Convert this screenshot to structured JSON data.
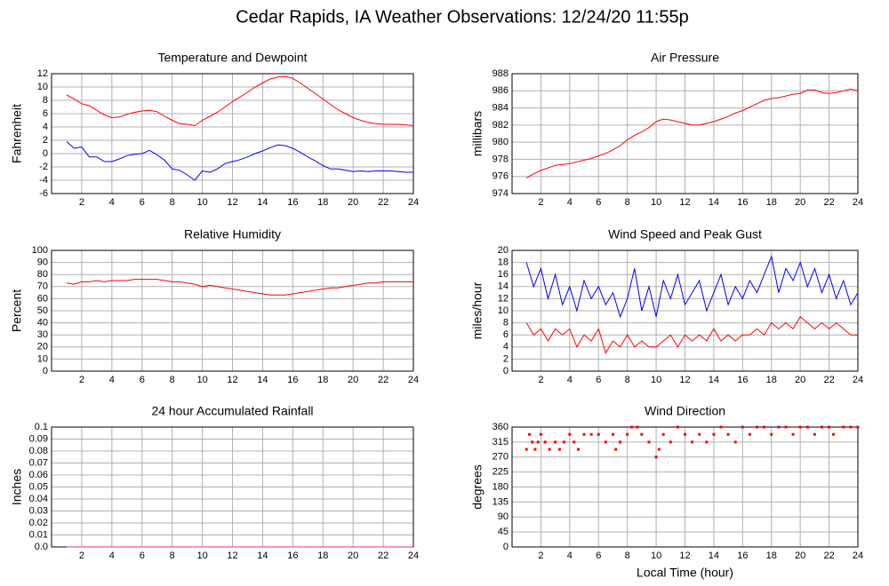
{
  "title": "Cedar Rapids, IA Weather Observations: 12/24/20 11:55p",
  "chart_data": [
    {
      "type": "line",
      "title": "Temperature and Dewpoint",
      "ylabel": "Fahrenheit",
      "x": [
        1,
        1.5,
        2,
        2.5,
        3,
        3.5,
        4,
        4.5,
        5,
        5.5,
        6,
        6.5,
        7,
        7.5,
        8,
        8.5,
        9,
        9.5,
        10,
        10.5,
        11,
        11.5,
        12,
        12.5,
        13,
        13.5,
        14,
        14.5,
        15,
        15.5,
        16,
        16.5,
        17,
        17.5,
        18,
        18.5,
        19,
        19.5,
        20,
        20.5,
        21,
        21.5,
        22,
        22.5,
        23,
        23.5,
        24
      ],
      "series": [
        {
          "color": "#ff0000",
          "values": [
            8.8,
            8.2,
            7.5,
            7.2,
            6.5,
            5.8,
            5.4,
            5.5,
            5.9,
            6.2,
            6.4,
            6.5,
            6.3,
            5.6,
            5.0,
            4.5,
            4.4,
            4.2,
            5.0,
            5.6,
            6.2,
            7.0,
            7.8,
            8.5,
            9.2,
            10.0,
            10.6,
            11.2,
            11.5,
            11.6,
            11.3,
            10.6,
            9.8,
            9.0,
            8.2,
            7.4,
            6.6,
            6.0,
            5.4,
            5.0,
            4.7,
            4.5,
            4.4,
            4.4,
            4.4,
            4.3,
            4.2
          ]
        },
        {
          "color": "#0000ff",
          "values": [
            1.8,
            0.8,
            1.0,
            -0.5,
            -0.5,
            -1.2,
            -1.2,
            -0.8,
            -0.3,
            -0.1,
            0.0,
            0.5,
            -0.2,
            -1.0,
            -2.3,
            -2.5,
            -3.2,
            -4.0,
            -2.6,
            -2.8,
            -2.3,
            -1.5,
            -1.2,
            -0.9,
            -0.5,
            0.0,
            0.4,
            0.9,
            1.3,
            1.2,
            0.8,
            0.2,
            -0.5,
            -1.1,
            -1.8,
            -2.3,
            -2.3,
            -2.5,
            -2.7,
            -2.6,
            -2.7,
            -2.6,
            -2.6,
            -2.6,
            -2.7,
            -2.8,
            -2.8
          ]
        }
      ],
      "xlim": [
        0,
        24
      ],
      "xticks": [
        2,
        4,
        6,
        8,
        10,
        12,
        14,
        16,
        18,
        20,
        22,
        24
      ],
      "ylim": [
        -6,
        12
      ],
      "yticks": [
        -6,
        -4,
        -2,
        0,
        2,
        4,
        6,
        8,
        10,
        12
      ],
      "grid": true
    },
    {
      "type": "line",
      "title": "Air Pressure",
      "ylabel": "millibars",
      "x": [
        1,
        1.5,
        2,
        2.5,
        3,
        3.5,
        4,
        4.5,
        5,
        5.5,
        6,
        6.5,
        7,
        7.5,
        8,
        8.5,
        9,
        9.5,
        10,
        10.5,
        11,
        11.5,
        12,
        12.5,
        13,
        13.5,
        14,
        14.5,
        15,
        15.5,
        16,
        16.5,
        17,
        17.5,
        18,
        18.5,
        19,
        19.5,
        20,
        20.5,
        21,
        21.5,
        22,
        22.5,
        23,
        23.5,
        24
      ],
      "series": [
        {
          "color": "#ff0000",
          "values": [
            975.8,
            976.3,
            976.7,
            977.0,
            977.3,
            977.4,
            977.5,
            977.7,
            977.9,
            978.1,
            978.4,
            978.7,
            979.1,
            979.6,
            980.3,
            980.8,
            981.2,
            981.7,
            982.4,
            982.7,
            982.6,
            982.4,
            982.2,
            982.0,
            982.0,
            982.2,
            982.4,
            982.7,
            983.0,
            983.4,
            983.7,
            984.1,
            984.5,
            984.9,
            985.1,
            985.2,
            985.4,
            985.6,
            985.7,
            986.1,
            986.1,
            985.8,
            985.7,
            985.8,
            986.0,
            986.2,
            986.0
          ]
        }
      ],
      "xlim": [
        0,
        24
      ],
      "xticks": [
        2,
        4,
        6,
        8,
        10,
        12,
        14,
        16,
        18,
        20,
        22,
        24
      ],
      "ylim": [
        974,
        988
      ],
      "yticks": [
        974,
        976,
        978,
        980,
        982,
        984,
        986,
        988
      ],
      "grid": true
    },
    {
      "type": "line",
      "title": "Relative Humidity",
      "ylabel": "Percent",
      "x": [
        1,
        1.5,
        2,
        2.5,
        3,
        3.5,
        4,
        4.5,
        5,
        5.5,
        6,
        6.5,
        7,
        7.5,
        8,
        8.5,
        9,
        9.5,
        10,
        10.5,
        11,
        11.5,
        12,
        12.5,
        13,
        13.5,
        14,
        14.5,
        15,
        15.5,
        16,
        16.5,
        17,
        17.5,
        18,
        18.5,
        19,
        19.5,
        20,
        20.5,
        21,
        21.5,
        22,
        22.5,
        23,
        23.5,
        24
      ],
      "series": [
        {
          "color": "#ff0000",
          "values": [
            73,
            72,
            74,
            74,
            75,
            74,
            75,
            75,
            75,
            76,
            76,
            76,
            76,
            75,
            74,
            74,
            73,
            72,
            70,
            71,
            70,
            69,
            68,
            67,
            66,
            65,
            64,
            63,
            63,
            63,
            64,
            65,
            66,
            67,
            68,
            69,
            69,
            70,
            71,
            72,
            73,
            73,
            74,
            74,
            74,
            74,
            74
          ]
        }
      ],
      "xlim": [
        0,
        24
      ],
      "xticks": [
        2,
        4,
        6,
        8,
        10,
        12,
        14,
        16,
        18,
        20,
        22,
        24
      ],
      "ylim": [
        0,
        100
      ],
      "yticks": [
        0,
        10,
        20,
        30,
        40,
        50,
        60,
        70,
        80,
        90,
        100
      ],
      "grid": true
    },
    {
      "type": "line",
      "title": "Wind Speed and Peak Gust",
      "ylabel": "miles/hour",
      "x": [
        1,
        1.5,
        2,
        2.5,
        3,
        3.5,
        4,
        4.5,
        5,
        5.5,
        6,
        6.5,
        7,
        7.5,
        8,
        8.5,
        9,
        9.5,
        10,
        10.5,
        11,
        11.5,
        12,
        12.5,
        13,
        13.5,
        14,
        14.5,
        15,
        15.5,
        16,
        16.5,
        17,
        17.5,
        18,
        18.5,
        19,
        19.5,
        20,
        20.5,
        21,
        21.5,
        22,
        22.5,
        23,
        23.5,
        24
      ],
      "series": [
        {
          "color": "#0000ff",
          "values": [
            18,
            14,
            17,
            12,
            16,
            11,
            14,
            10,
            15,
            12,
            14,
            11,
            13,
            9,
            12,
            17,
            10,
            14,
            9,
            15,
            12,
            16,
            11,
            13,
            15,
            10,
            13,
            16,
            11,
            14,
            12,
            15,
            13,
            16,
            19,
            13,
            17,
            15,
            18,
            14,
            17,
            13,
            16,
            12,
            15,
            11,
            13
          ]
        },
        {
          "color": "#ff0000",
          "values": [
            8,
            6,
            7,
            5,
            7,
            6,
            7,
            4,
            6,
            5,
            7,
            3,
            5,
            4,
            6,
            4,
            5,
            4,
            4,
            5,
            6,
            4,
            6,
            5,
            6,
            5,
            7,
            5,
            6,
            5,
            6,
            6,
            7,
            6,
            8,
            7,
            8,
            7,
            9,
            8,
            7,
            8,
            7,
            8,
            7,
            6,
            6
          ]
        }
      ],
      "xlim": [
        0,
        24
      ],
      "xticks": [
        2,
        4,
        6,
        8,
        10,
        12,
        14,
        16,
        18,
        20,
        22,
        24
      ],
      "ylim": [
        0,
        20
      ],
      "yticks": [
        0,
        2,
        4,
        6,
        8,
        10,
        12,
        14,
        16,
        18,
        20
      ],
      "grid": true
    },
    {
      "type": "line",
      "title": "24 hour Accumulated Rainfall",
      "ylabel": "Inches",
      "x": [
        1,
        24
      ],
      "series": [
        {
          "color": "#e8306a",
          "values": [
            0,
            0
          ]
        }
      ],
      "xlim": [
        0,
        24
      ],
      "xticks": [
        2,
        4,
        6,
        8,
        10,
        12,
        14,
        16,
        18,
        20,
        22,
        24
      ],
      "ylim": [
        0,
        0.1
      ],
      "yticks": [
        {
          "value": 0,
          "label": "0.0"
        },
        0.01,
        0.02,
        0.03,
        0.04,
        0.05,
        0.06,
        0.07,
        0.08,
        0.09,
        0.1
      ],
      "grid": true
    },
    {
      "type": "scatter",
      "title": "Wind Direction",
      "ylabel": "degrees",
      "xlabel": "Local Time (hour)",
      "x": [
        1,
        1.2,
        1.4,
        1.6,
        1.8,
        2,
        2.3,
        2.6,
        3,
        3.3,
        3.6,
        4,
        4.3,
        4.6,
        5,
        5.5,
        6,
        6.5,
        7,
        7.2,
        7.5,
        8,
        8.3,
        8.7,
        9,
        9.5,
        10,
        10.2,
        10.5,
        11,
        11.5,
        12,
        12.5,
        13,
        13.5,
        14,
        14.5,
        15,
        15.5,
        16,
        16.5,
        17,
        17.5,
        18,
        18.5,
        19,
        19.5,
        20,
        20.5,
        21,
        21.5,
        22,
        22.3,
        23,
        23.5,
        24
      ],
      "series": [
        {
          "color": "#ff0000",
          "values": [
            293,
            338,
            315,
            293,
            315,
            338,
            315,
            293,
            315,
            293,
            315,
            338,
            315,
            293,
            338,
            338,
            338,
            315,
            338,
            293,
            315,
            338,
            360,
            360,
            338,
            315,
            270,
            293,
            338,
            315,
            360,
            338,
            315,
            338,
            315,
            338,
            360,
            338,
            315,
            360,
            338,
            360,
            360,
            338,
            360,
            360,
            338,
            360,
            360,
            338,
            360,
            360,
            338,
            360,
            360,
            360
          ]
        }
      ],
      "xlim": [
        0,
        24
      ],
      "xticks": [
        2,
        4,
        6,
        8,
        10,
        12,
        14,
        16,
        18,
        20,
        22,
        24
      ],
      "ylim": [
        0,
        360
      ],
      "yticks": [
        0,
        45,
        90,
        135,
        180,
        225,
        270,
        315,
        360
      ],
      "grid": true
    }
  ]
}
